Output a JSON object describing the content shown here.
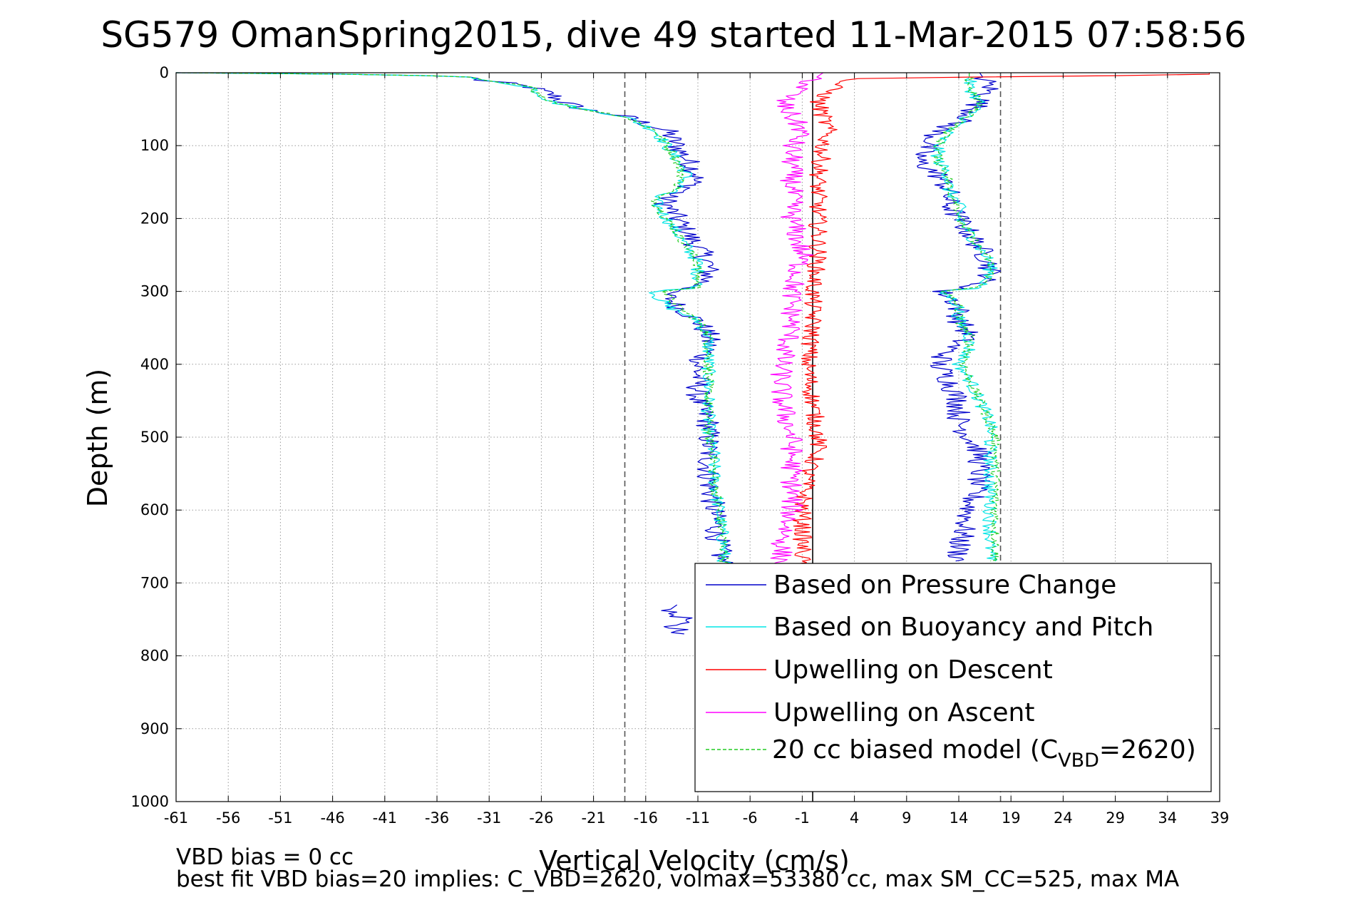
{
  "chart_data": {
    "type": "line",
    "title": "SG579 OmanSpring2015, dive 49 started 11-Mar-2015 07:58:56",
    "xlabel": "Vertical Velocity (cm/s)",
    "ylabel": "Depth (m)",
    "xlim": [
      -61,
      39
    ],
    "ylim": [
      0,
      1000
    ],
    "y_reversed": true,
    "grid": true,
    "x_ticks": [
      -61,
      -56,
      -51,
      -46,
      -41,
      -36,
      -31,
      -26,
      -21,
      -16,
      -11,
      -6,
      -1,
      4,
      9,
      14,
      19,
      24,
      29,
      34,
      39
    ],
    "y_ticks": [
      0,
      100,
      200,
      300,
      400,
      500,
      600,
      700,
      800,
      900,
      1000
    ],
    "reference_lines": [
      {
        "x": -18,
        "style": "dashed",
        "color": "#555555"
      },
      {
        "x": 0,
        "style": "solid",
        "color": "#000000"
      },
      {
        "x": 18,
        "style": "dashed",
        "color": "#555555"
      }
    ],
    "legend_placement": "bottom-right",
    "legend": [
      {
        "label": "Based on Pressure Change",
        "color": "#0000cc",
        "style": "solid"
      },
      {
        "label": "Based on Buoyancy and Pitch",
        "color": "#00e5e5",
        "style": "solid"
      },
      {
        "label": "Upwelling on Descent",
        "color": "#ff0000",
        "style": "solid"
      },
      {
        "label": "Upwelling on Ascent",
        "color": "#ff00ff",
        "style": "solid"
      },
      {
        "label_prefix": "20 cc biased model (C",
        "label_sub": "VBD",
        "label_suffix": "=2620)",
        "color": "#22cc22",
        "style": "dashed"
      }
    ],
    "series": [
      {
        "key": "pressure_descent",
        "color": "#0000cc",
        "style": "solid",
        "noise": 1.2,
        "depth": [
          0,
          2,
          5,
          10,
          15,
          20,
          30,
          40,
          50,
          60,
          80,
          100,
          120,
          140,
          160,
          170,
          180,
          200,
          220,
          240,
          260,
          280,
          295,
          300,
          305,
          320,
          340,
          360,
          380,
          400,
          420,
          450,
          480,
          500,
          520,
          550,
          600,
          650,
          680
        ],
        "velocity": [
          -61,
          -45,
          -33,
          -32,
          -29,
          -27,
          -25,
          -24,
          -22,
          -18,
          -14,
          -13,
          -12,
          -11,
          -12,
          -14,
          -14,
          -13,
          -12,
          -11,
          -10,
          -10,
          -11,
          -14,
          -14,
          -13,
          -11,
          -10,
          -10,
          -11,
          -11,
          -11,
          -10,
          -10,
          -10,
          -10,
          -9.5,
          -9,
          -8.5
        ]
      },
      {
        "key": "pressure_descent_deep",
        "color": "#0000cc",
        "style": "solid",
        "noise": 1.0,
        "depth": [
          730,
          740,
          750,
          760,
          765,
          770
        ],
        "velocity": [
          -13,
          -14,
          -12,
          -14,
          -12,
          -13
        ]
      },
      {
        "key": "buoyancy_descent",
        "color": "#00e5e5",
        "style": "solid",
        "noise": 0.7,
        "depth": [
          0,
          2,
          5,
          10,
          15,
          20,
          30,
          40,
          50,
          60,
          80,
          100,
          120,
          140,
          160,
          170,
          180,
          200,
          220,
          240,
          260,
          280,
          295,
          300,
          305,
          320,
          340,
          360,
          380,
          400,
          420,
          450,
          480,
          500,
          520,
          550,
          600,
          650,
          680
        ],
        "velocity": [
          -61,
          -45,
          -33,
          -32,
          -29,
          -27,
          -26,
          -25,
          -22,
          -18,
          -15,
          -14,
          -13,
          -12,
          -13,
          -15,
          -15,
          -14,
          -13,
          -12,
          -11,
          -11,
          -11,
          -15,
          -15,
          -14,
          -11,
          -10,
          -10,
          -10,
          -10,
          -10,
          -10,
          -10,
          -9.5,
          -9.5,
          -9,
          -8.5,
          -8.5
        ]
      },
      {
        "key": "model_descent",
        "color": "#22cc22",
        "style": "dashed",
        "noise": 0.5,
        "depth": [
          0,
          2,
          5,
          10,
          15,
          20,
          30,
          40,
          50,
          60,
          80,
          100,
          120,
          140,
          160,
          170,
          180,
          200,
          220,
          240,
          260,
          280,
          295,
          300,
          305,
          320,
          340,
          360,
          380,
          400,
          420,
          450,
          480,
          500,
          520,
          550,
          600,
          650,
          680
        ],
        "velocity": [
          -61,
          -45,
          -33,
          -32,
          -29,
          -27,
          -26,
          -25,
          -22,
          -18,
          -15,
          -14,
          -13,
          -12.5,
          -13,
          -15,
          -15,
          -14,
          -13,
          -12,
          -11,
          -11,
          -11,
          -14,
          -14,
          -13,
          -11,
          -10,
          -10,
          -10,
          -10,
          -10,
          -10,
          -10,
          -9.5,
          -9.5,
          -9,
          -8.5,
          -8.5
        ]
      },
      {
        "key": "pressure_ascent",
        "color": "#0000cc",
        "style": "solid",
        "noise": 1.2,
        "depth": [
          0,
          20,
          40,
          60,
          80,
          100,
          120,
          140,
          160,
          180,
          200,
          220,
          240,
          260,
          280,
          295,
          300,
          305,
          320,
          340,
          360,
          380,
          400,
          420,
          450,
          480,
          500,
          520,
          550,
          600,
          650,
          670
        ],
        "velocity": [
          16,
          17,
          16,
          15,
          12,
          11,
          10,
          12,
          13,
          13,
          14,
          15,
          16,
          17,
          17,
          15,
          12,
          13,
          14,
          14,
          15,
          13,
          12,
          13,
          14,
          14,
          15,
          16,
          16,
          15,
          14,
          14
        ]
      },
      {
        "key": "buoyancy_ascent",
        "color": "#00e5e5",
        "style": "solid",
        "noise": 0.7,
        "depth": [
          0,
          20,
          40,
          60,
          80,
          100,
          120,
          140,
          160,
          180,
          200,
          220,
          240,
          260,
          280,
          295,
          300,
          305,
          320,
          340,
          360,
          380,
          400,
          420,
          450,
          480,
          500,
          520,
          550,
          600,
          650,
          670
        ],
        "velocity": [
          15,
          15,
          16,
          15,
          13,
          12,
          12,
          13,
          13,
          14,
          14,
          15,
          16,
          17,
          17,
          16,
          12,
          13,
          14,
          14,
          15,
          15,
          14,
          15,
          16,
          17,
          17,
          17,
          17,
          17,
          17,
          17
        ]
      },
      {
        "key": "model_ascent",
        "color": "#22cc22",
        "style": "dashed",
        "noise": 0.5,
        "depth": [
          0,
          20,
          40,
          60,
          80,
          100,
          120,
          140,
          160,
          180,
          200,
          220,
          240,
          260,
          280,
          295,
          300,
          305,
          320,
          340,
          360,
          380,
          400,
          420,
          450,
          480,
          500,
          520,
          550,
          600,
          650,
          670
        ],
        "velocity": [
          15,
          15,
          16,
          15,
          13,
          12,
          12,
          13,
          13,
          14,
          14,
          15,
          16,
          17,
          17,
          16,
          12,
          13,
          14,
          14,
          15,
          15,
          14.5,
          15,
          16,
          17,
          17.5,
          17.5,
          17.5,
          17.5,
          17.5,
          17.5
        ]
      },
      {
        "key": "upwelling_descent",
        "color": "#ff0000",
        "style": "solid",
        "noise": 0.9,
        "depth": [
          0,
          3,
          5,
          8,
          10,
          20,
          40,
          60,
          80,
          100,
          150,
          200,
          250,
          300,
          350,
          400,
          450,
          500,
          520,
          550,
          600,
          650,
          680
        ],
        "velocity": [
          38,
          38,
          20,
          5,
          3,
          2,
          0.5,
          1,
          1.5,
          1,
          0.5,
          0.5,
          0.5,
          0,
          0,
          -0.5,
          0,
          0.5,
          0.5,
          -0.5,
          -1,
          -1,
          -1
        ]
      },
      {
        "key": "upwelling_ascent",
        "color": "#ff00ff",
        "style": "solid",
        "noise": 1.1,
        "depth": [
          0,
          20,
          40,
          60,
          80,
          100,
          150,
          200,
          250,
          300,
          350,
          400,
          420,
          450,
          500,
          550,
          600,
          650,
          680
        ],
        "velocity": [
          1,
          -1,
          -3,
          -2,
          -1,
          -2,
          -2,
          -2,
          -1,
          -2,
          -2,
          -3,
          -3,
          -3,
          -2,
          -2,
          -2,
          -3,
          -3
        ]
      }
    ]
  },
  "footer": {
    "line1": "VBD bias = 0 cc",
    "line2": "best fit VBD bias=20 implies: C_VBD=2620, volmax=53380 cc, max SM_CC=525, max MA"
  }
}
